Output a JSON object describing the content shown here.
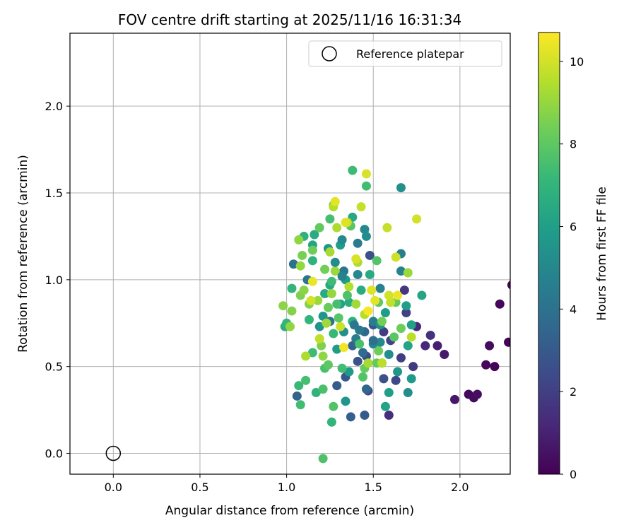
{
  "chart_data": {
    "type": "scatter",
    "title": "FOV centre drift starting at 2025/11/16 16:31:34",
    "xlabel": "Angular distance from reference (arcmin)",
    "ylabel": "Rotation from reference (arcmin)",
    "xlim": [
      -0.25,
      2.29
    ],
    "ylim": [
      -0.12,
      2.42
    ],
    "xticks": [
      "0.0",
      "0.5",
      "1.0",
      "1.5",
      "2.0"
    ],
    "xtick_values": [
      0.0,
      0.5,
      1.0,
      1.5,
      2.0
    ],
    "yticks": [
      "0.0",
      "0.5",
      "1.0",
      "1.5",
      "2.0"
    ],
    "ytick_values": [
      0.0,
      0.5,
      1.0,
      1.5,
      2.0
    ],
    "grid": true,
    "legend": {
      "label": "Reference platepar",
      "placement": "top-right"
    },
    "reference_point": {
      "x": 0.0,
      "y": 0.0
    },
    "colorbar": {
      "label": "Hours from first FF file",
      "range": [
        0,
        10.7
      ],
      "ticks": [
        "0",
        "2",
        "4",
        "6",
        "8",
        "10"
      ],
      "tick_values": [
        0,
        2,
        4,
        6,
        8,
        10
      ],
      "colormap": "viridis"
    },
    "series": [
      {
        "name": "FOV centre drift",
        "points": [
          {
            "x": 2.3,
            "y": 0.97,
            "h": 0.1
          },
          {
            "x": 2.23,
            "y": 0.86,
            "h": 0.2
          },
          {
            "x": 2.28,
            "y": 0.64,
            "h": 0.1
          },
          {
            "x": 2.17,
            "y": 0.62,
            "h": 0.3
          },
          {
            "x": 2.15,
            "y": 0.51,
            "h": 0.2
          },
          {
            "x": 2.2,
            "y": 0.5,
            "h": 0.1
          },
          {
            "x": 2.05,
            "y": 0.34,
            "h": 0.2
          },
          {
            "x": 2.08,
            "y": 0.32,
            "h": 0.3
          },
          {
            "x": 2.1,
            "y": 0.34,
            "h": 0.4
          },
          {
            "x": 1.97,
            "y": 0.31,
            "h": 0.7
          },
          {
            "x": 1.91,
            "y": 0.57,
            "h": 0.8
          },
          {
            "x": 1.87,
            "y": 0.62,
            "h": 0.9
          },
          {
            "x": 1.8,
            "y": 0.62,
            "h": 1.2
          },
          {
            "x": 1.83,
            "y": 0.68,
            "h": 1.5
          },
          {
            "x": 1.75,
            "y": 0.73,
            "h": 1.3
          },
          {
            "x": 1.73,
            "y": 0.5,
            "h": 1.8
          },
          {
            "x": 1.59,
            "y": 0.22,
            "h": 1.4
          },
          {
            "x": 1.66,
            "y": 0.55,
            "h": 2.0
          },
          {
            "x": 1.63,
            "y": 0.42,
            "h": 2.3
          },
          {
            "x": 1.56,
            "y": 0.43,
            "h": 2.6
          },
          {
            "x": 1.47,
            "y": 0.36,
            "h": 2.5
          },
          {
            "x": 1.46,
            "y": 0.56,
            "h": 2.4
          },
          {
            "x": 1.41,
            "y": 0.53,
            "h": 2.7
          },
          {
            "x": 1.45,
            "y": 0.22,
            "h": 3.0
          },
          {
            "x": 1.37,
            "y": 0.21,
            "h": 3.2
          },
          {
            "x": 1.34,
            "y": 0.44,
            "h": 2.9
          },
          {
            "x": 1.29,
            "y": 0.39,
            "h": 3.1
          },
          {
            "x": 1.46,
            "y": 0.37,
            "h": 3.5
          },
          {
            "x": 1.38,
            "y": 0.62,
            "h": 3.3
          },
          {
            "x": 1.45,
            "y": 0.7,
            "h": 3.6
          },
          {
            "x": 1.5,
            "y": 0.74,
            "h": 2.8
          },
          {
            "x": 1.56,
            "y": 0.7,
            "h": 1.9
          },
          {
            "x": 1.6,
            "y": 0.65,
            "h": 2.2
          },
          {
            "x": 1.69,
            "y": 0.81,
            "h": 2.1
          },
          {
            "x": 1.68,
            "y": 0.94,
            "h": 1.7
          },
          {
            "x": 1.48,
            "y": 1.14,
            "h": 2.6
          },
          {
            "x": 1.06,
            "y": 0.33,
            "h": 3.4
          },
          {
            "x": 1.04,
            "y": 1.09,
            "h": 4.0
          },
          {
            "x": 1.12,
            "y": 1.0,
            "h": 4.2
          },
          {
            "x": 1.25,
            "y": 0.76,
            "h": 4.1
          },
          {
            "x": 1.33,
            "y": 1.05,
            "h": 4.3
          },
          {
            "x": 1.41,
            "y": 1.21,
            "h": 4.5
          },
          {
            "x": 1.45,
            "y": 1.29,
            "h": 5.0
          },
          {
            "x": 1.46,
            "y": 1.25,
            "h": 5.2
          },
          {
            "x": 1.66,
            "y": 1.05,
            "h": 4.8
          },
          {
            "x": 1.66,
            "y": 1.15,
            "h": 4.6
          },
          {
            "x": 1.66,
            "y": 1.53,
            "h": 5.4
          },
          {
            "x": 1.54,
            "y": 0.95,
            "h": 4.7
          },
          {
            "x": 1.5,
            "y": 0.63,
            "h": 4.9
          },
          {
            "x": 1.54,
            "y": 0.64,
            "h": 5.1
          },
          {
            "x": 1.59,
            "y": 0.57,
            "h": 5.3
          },
          {
            "x": 1.55,
            "y": 0.52,
            "h": 5.5
          },
          {
            "x": 1.64,
            "y": 0.47,
            "h": 5.6
          },
          {
            "x": 1.7,
            "y": 0.35,
            "h": 5.2
          },
          {
            "x": 1.72,
            "y": 0.43,
            "h": 5.8
          },
          {
            "x": 1.59,
            "y": 0.35,
            "h": 6.0
          },
          {
            "x": 1.57,
            "y": 0.27,
            "h": 6.2
          },
          {
            "x": 1.34,
            "y": 0.3,
            "h": 5.5
          },
          {
            "x": 1.36,
            "y": 0.47,
            "h": 5.7
          },
          {
            "x": 1.29,
            "y": 0.6,
            "h": 5.9
          },
          {
            "x": 1.33,
            "y": 0.7,
            "h": 5.3
          },
          {
            "x": 1.4,
            "y": 0.66,
            "h": 4.5
          },
          {
            "x": 1.42,
            "y": 0.71,
            "h": 4.4
          },
          {
            "x": 1.5,
            "y": 0.76,
            "h": 4.6
          },
          {
            "x": 1.54,
            "y": 0.74,
            "h": 5.4
          },
          {
            "x": 1.57,
            "y": 0.81,
            "h": 5.9
          },
          {
            "x": 1.69,
            "y": 0.85,
            "h": 6.0
          },
          {
            "x": 1.72,
            "y": 0.74,
            "h": 6.1
          },
          {
            "x": 1.78,
            "y": 0.91,
            "h": 6.3
          },
          {
            "x": 1.7,
            "y": 0.62,
            "h": 6.2
          },
          {
            "x": 1.19,
            "y": 0.73,
            "h": 5.5
          },
          {
            "x": 1.21,
            "y": 0.79,
            "h": 5.6
          },
          {
            "x": 1.22,
            "y": 0.92,
            "h": 6.5
          },
          {
            "x": 1.25,
            "y": 0.97,
            "h": 6.4
          },
          {
            "x": 1.31,
            "y": 0.86,
            "h": 6.1
          },
          {
            "x": 1.36,
            "y": 0.87,
            "h": 6.6
          },
          {
            "x": 1.34,
            "y": 1.0,
            "h": 5.8
          },
          {
            "x": 1.41,
            "y": 1.03,
            "h": 5.0
          },
          {
            "x": 1.31,
            "y": 1.2,
            "h": 5.9
          },
          {
            "x": 1.32,
            "y": 1.23,
            "h": 5.1
          },
          {
            "x": 1.38,
            "y": 1.36,
            "h": 6.4
          },
          {
            "x": 1.24,
            "y": 1.18,
            "h": 5.6
          },
          {
            "x": 1.15,
            "y": 1.2,
            "h": 6.3
          },
          {
            "x": 1.16,
            "y": 1.26,
            "h": 6.6
          },
          {
            "x": 1.1,
            "y": 1.25,
            "h": 6.8
          },
          {
            "x": 1.15,
            "y": 1.11,
            "h": 6.9
          },
          {
            "x": 1.13,
            "y": 0.77,
            "h": 7.0
          },
          {
            "x": 0.99,
            "y": 0.73,
            "h": 6.7
          },
          {
            "x": 1.0,
            "y": 0.75,
            "h": 7.1
          },
          {
            "x": 1.03,
            "y": 0.95,
            "h": 7.0
          },
          {
            "x": 1.07,
            "y": 0.39,
            "h": 7.2
          },
          {
            "x": 1.08,
            "y": 0.28,
            "h": 7.4
          },
          {
            "x": 1.11,
            "y": 0.42,
            "h": 7.5
          },
          {
            "x": 1.15,
            "y": 0.58,
            "h": 7.3
          },
          {
            "x": 1.17,
            "y": 0.35,
            "h": 6.9
          },
          {
            "x": 1.21,
            "y": 0.37,
            "h": 7.6
          },
          {
            "x": 1.26,
            "y": 0.18,
            "h": 7.0
          },
          {
            "x": 1.27,
            "y": 0.27,
            "h": 7.8
          },
          {
            "x": 1.21,
            "y": -0.03,
            "h": 7.7
          },
          {
            "x": 1.22,
            "y": 0.49,
            "h": 7.6
          },
          {
            "x": 1.24,
            "y": 0.51,
            "h": 8.0
          },
          {
            "x": 1.27,
            "y": 0.69,
            "h": 7.2
          },
          {
            "x": 1.29,
            "y": 0.86,
            "h": 7.5
          },
          {
            "x": 1.38,
            "y": 1.63,
            "h": 7.3
          },
          {
            "x": 1.46,
            "y": 1.54,
            "h": 7.4
          },
          {
            "x": 1.37,
            "y": 1.31,
            "h": 7.9
          },
          {
            "x": 1.27,
            "y": 1.43,
            "h": 8.2
          },
          {
            "x": 1.25,
            "y": 1.35,
            "h": 7.5
          },
          {
            "x": 1.19,
            "y": 1.3,
            "h": 8.1
          },
          {
            "x": 1.15,
            "y": 1.17,
            "h": 8.3
          },
          {
            "x": 1.22,
            "y": 1.06,
            "h": 8.4
          },
          {
            "x": 1.26,
            "y": 0.99,
            "h": 7.3
          },
          {
            "x": 1.42,
            "y": 0.63,
            "h": 7.6
          },
          {
            "x": 1.44,
            "y": 0.44,
            "h": 7.8
          },
          {
            "x": 1.45,
            "y": 0.49,
            "h": 8.2
          },
          {
            "x": 1.52,
            "y": 0.52,
            "h": 8.1
          },
          {
            "x": 1.53,
            "y": 0.59,
            "h": 8.3
          },
          {
            "x": 1.53,
            "y": 0.87,
            "h": 8.0
          },
          {
            "x": 1.55,
            "y": 0.76,
            "h": 8.4
          },
          {
            "x": 1.52,
            "y": 1.11,
            "h": 7.8
          },
          {
            "x": 1.62,
            "y": 0.67,
            "h": 7.9
          },
          {
            "x": 1.66,
            "y": 0.72,
            "h": 8.3
          },
          {
            "x": 1.63,
            "y": 0.87,
            "h": 8.1
          },
          {
            "x": 0.98,
            "y": 0.85,
            "h": 8.8
          },
          {
            "x": 1.02,
            "y": 0.73,
            "h": 8.9
          },
          {
            "x": 1.03,
            "y": 0.82,
            "h": 8.7
          },
          {
            "x": 1.08,
            "y": 0.91,
            "h": 8.6
          },
          {
            "x": 1.1,
            "y": 0.94,
            "h": 8.8
          },
          {
            "x": 1.07,
            "y": 1.23,
            "h": 8.9
          },
          {
            "x": 1.09,
            "y": 1.14,
            "h": 8.5
          },
          {
            "x": 1.08,
            "y": 1.08,
            "h": 9.0
          },
          {
            "x": 1.13,
            "y": 0.86,
            "h": 8.7
          },
          {
            "x": 1.18,
            "y": 0.88,
            "h": 9.1
          },
          {
            "x": 1.2,
            "y": 0.62,
            "h": 8.6
          },
          {
            "x": 1.21,
            "y": 0.56,
            "h": 8.9
          },
          {
            "x": 1.23,
            "y": 0.75,
            "h": 9.2
          },
          {
            "x": 1.26,
            "y": 0.92,
            "h": 9.0
          },
          {
            "x": 1.25,
            "y": 1.16,
            "h": 9.3
          },
          {
            "x": 1.28,
            "y": 1.05,
            "h": 9.1
          },
          {
            "x": 1.29,
            "y": 1.3,
            "h": 9.4
          },
          {
            "x": 1.27,
            "y": 1.42,
            "h": 9.5
          },
          {
            "x": 1.35,
            "y": 1.33,
            "h": 9.6
          },
          {
            "x": 1.43,
            "y": 1.42,
            "h": 9.8
          },
          {
            "x": 1.41,
            "y": 1.1,
            "h": 9.4
          },
          {
            "x": 1.4,
            "y": 0.86,
            "h": 9.2
          },
          {
            "x": 1.45,
            "y": 0.8,
            "h": 9.5
          },
          {
            "x": 1.47,
            "y": 0.52,
            "h": 9.3
          },
          {
            "x": 1.55,
            "y": 0.52,
            "h": 9.6
          },
          {
            "x": 1.6,
            "y": 0.87,
            "h": 9.7
          },
          {
            "x": 1.58,
            "y": 1.3,
            "h": 9.8
          },
          {
            "x": 1.63,
            "y": 1.13,
            "h": 9.9
          },
          {
            "x": 1.7,
            "y": 1.04,
            "h": 9.1
          },
          {
            "x": 1.72,
            "y": 0.67,
            "h": 9.6
          },
          {
            "x": 1.75,
            "y": 1.35,
            "h": 10.0
          },
          {
            "x": 1.46,
            "y": 1.61,
            "h": 10.1
          },
          {
            "x": 1.34,
            "y": 1.33,
            "h": 10.2
          },
          {
            "x": 1.28,
            "y": 1.45,
            "h": 10.3
          },
          {
            "x": 1.14,
            "y": 0.88,
            "h": 10.0
          },
          {
            "x": 1.15,
            "y": 0.99,
            "h": 10.4
          },
          {
            "x": 1.33,
            "y": 0.61,
            "h": 10.5
          },
          {
            "x": 1.4,
            "y": 1.12,
            "h": 10.1
          },
          {
            "x": 1.47,
            "y": 0.82,
            "h": 10.6
          },
          {
            "x": 1.49,
            "y": 0.94,
            "h": 10.2
          },
          {
            "x": 1.51,
            "y": 0.88,
            "h": 10.3
          },
          {
            "x": 1.59,
            "y": 0.91,
            "h": 10.0
          },
          {
            "x": 1.64,
            "y": 0.91,
            "h": 10.4
          },
          {
            "x": 1.11,
            "y": 0.56,
            "h": 9.4
          },
          {
            "x": 1.19,
            "y": 0.66,
            "h": 9.7
          },
          {
            "x": 1.36,
            "y": 0.96,
            "h": 9.5
          },
          {
            "x": 1.31,
            "y": 0.73,
            "h": 9.9
          },
          {
            "x": 1.24,
            "y": 0.84,
            "h": 8.2
          },
          {
            "x": 1.3,
            "y": 0.78,
            "h": 7.9
          },
          {
            "x": 1.35,
            "y": 0.91,
            "h": 7.7
          },
          {
            "x": 1.32,
            "y": 0.49,
            "h": 7.4
          },
          {
            "x": 1.38,
            "y": 0.76,
            "h": 6.8
          },
          {
            "x": 1.43,
            "y": 0.94,
            "h": 6.6
          },
          {
            "x": 1.48,
            "y": 1.03,
            "h": 6.5
          },
          {
            "x": 1.39,
            "y": 0.74,
            "h": 4.2
          },
          {
            "x": 1.44,
            "y": 0.58,
            "h": 3.8
          },
          {
            "x": 1.5,
            "y": 0.65,
            "h": 3.9
          },
          {
            "x": 1.32,
            "y": 1.02,
            "h": 4.8
          },
          {
            "x": 1.28,
            "y": 1.1,
            "h": 5.2
          }
        ]
      }
    ]
  }
}
